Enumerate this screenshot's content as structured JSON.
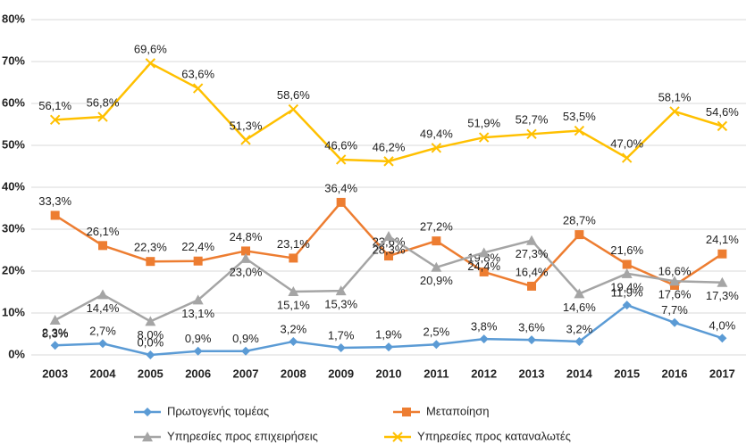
{
  "chart_data": {
    "type": "line",
    "categories": [
      "2003",
      "2004",
      "2005",
      "2006",
      "2007",
      "2008",
      "2009",
      "2010",
      "2011",
      "2012",
      "2013",
      "2014",
      "2015",
      "2016",
      "2017"
    ],
    "ylim": [
      0,
      80
    ],
    "yticks": [
      {
        "value": 0,
        "label": "0%"
      },
      {
        "value": 10,
        "label": "10%"
      },
      {
        "value": 20,
        "label": "20%"
      },
      {
        "value": 30,
        "label": "30%"
      },
      {
        "value": 40,
        "label": "40%"
      },
      {
        "value": 50,
        "label": "50%"
      },
      {
        "value": 60,
        "label": "60%"
      },
      {
        "value": 70,
        "label": "70%"
      },
      {
        "value": 80,
        "label": "80%"
      }
    ],
    "grid": true,
    "legend": "bottom",
    "series": [
      {
        "name": "Πρωτογενής τομέας",
        "color": "#5b9bd5",
        "marker": "diamond",
        "values": [
          2.3,
          2.7,
          0.0,
          0.9,
          0.9,
          3.2,
          1.7,
          1.9,
          2.5,
          3.8,
          3.6,
          3.2,
          11.9,
          7.7,
          4.0
        ],
        "value_labels": [
          "2,3%",
          "2,7%",
          "0,0%",
          "0,9%",
          "0,9%",
          "3,2%",
          "1,7%",
          "1,9%",
          "2,5%",
          "3,8%",
          "3,6%",
          "3,2%",
          "11,9%",
          "7,7%",
          "4,0%"
        ]
      },
      {
        "name": "Μεταποίηση",
        "color": "#ed7d31",
        "marker": "square",
        "values": [
          33.3,
          26.1,
          22.3,
          22.4,
          24.8,
          23.1,
          36.4,
          23.6,
          27.2,
          19.8,
          16.4,
          28.7,
          21.6,
          16.6,
          24.1
        ],
        "value_labels": [
          "33,3%",
          "26,1%",
          "22,3%",
          "22,4%",
          "24,8%",
          "23,1%",
          "36,4%",
          "23,6%",
          "27,2%",
          "19,8%",
          "16,4%",
          "28,7%",
          "21,6%",
          "16,6%",
          "24,1%"
        ]
      },
      {
        "name": "Υπηρεσίες προς επιχειρήσεις",
        "color": "#a5a5a5",
        "marker": "triangle",
        "values": [
          8.3,
          14.4,
          8.0,
          13.1,
          23.0,
          15.1,
          15.3,
          28.3,
          20.9,
          24.4,
          27.3,
          14.6,
          19.4,
          17.6,
          17.3
        ],
        "value_labels": [
          "8,3%",
          "14,4%",
          "8,0%",
          "13,1%",
          "23,0%",
          "15,1%",
          "15,3%",
          "28,3%",
          "20,9%",
          "24,4%",
          "27,3%",
          "14,6%",
          "19,4%",
          "17,6%",
          "17,3%"
        ]
      },
      {
        "name": "Υπηρεσίες προς καταναλωτές",
        "color": "#ffc000",
        "marker": "x",
        "values": [
          56.1,
          56.8,
          69.6,
          63.6,
          51.3,
          58.6,
          46.6,
          46.2,
          49.4,
          51.9,
          52.7,
          53.5,
          47.0,
          58.1,
          54.6
        ],
        "value_labels": [
          "56,1%",
          "56,8%",
          "69,6%",
          "63,6%",
          "51,3%",
          "58,6%",
          "46,6%",
          "46,2%",
          "49,4%",
          "51,9%",
          "52,7%",
          "53,5%",
          "47,0%",
          "58,1%",
          "54,6%"
        ]
      }
    ]
  }
}
